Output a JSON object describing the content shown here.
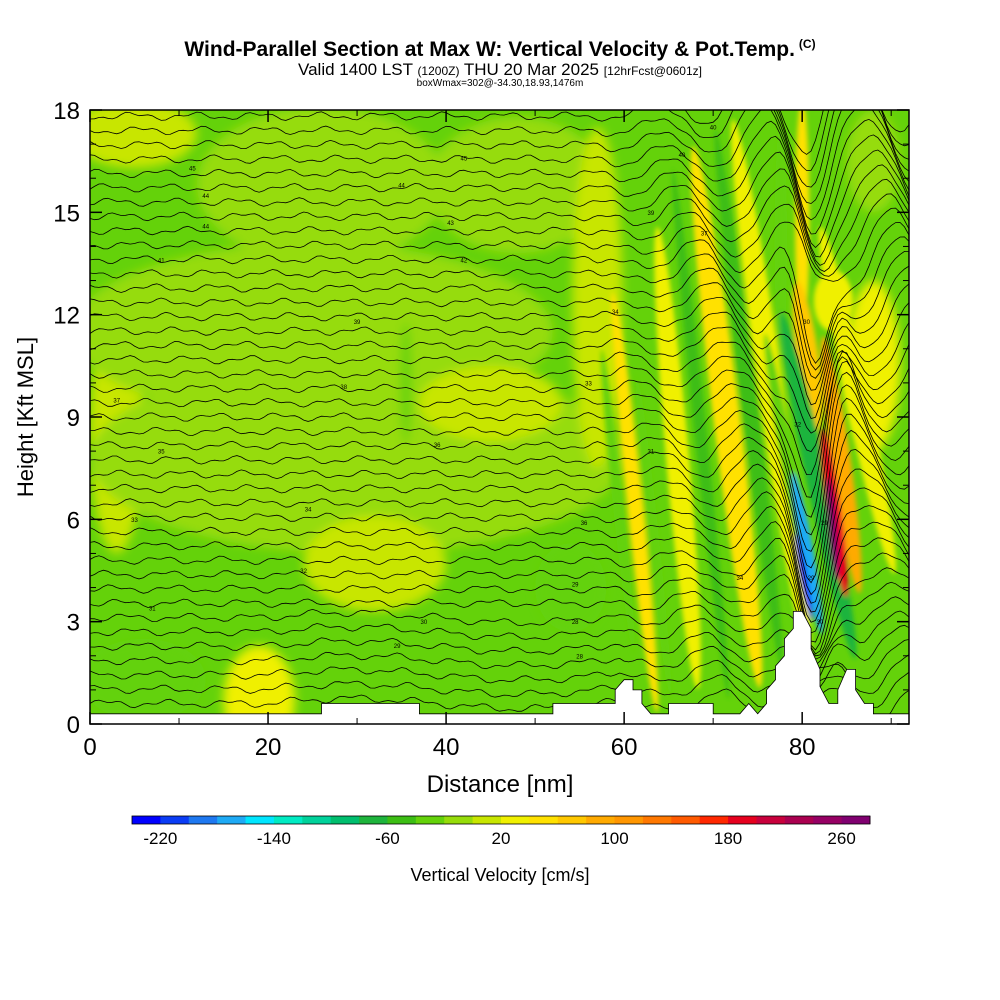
{
  "titles": {
    "main": "Wind-Parallel Section at Max W: Vertical Velocity & Pot.Temp.",
    "copyright": "(C)",
    "valid_prefix": "Valid 1400 LST",
    "valid_utc": "(1200Z)",
    "valid_date": "THU 20 Mar 2025",
    "forecast": "[12hrFcst@0601z]",
    "box": "boxWmax=302@-34.30,18.93,1476m"
  },
  "chart_data": {
    "type": "heatmap",
    "xlabel": "Distance [nm]",
    "ylabel": "Height [Kft MSL]",
    "xlim": [
      0,
      92
    ],
    "ylim": [
      0,
      18
    ],
    "x_ticks": [
      "0",
      "20",
      "40",
      "60",
      "80"
    ],
    "y_ticks": [
      "0",
      "3",
      "6",
      "9",
      "12",
      "15",
      "18"
    ],
    "colorbar": {
      "label": "Vertical Velocity [cm/s]",
      "tick_labels": [
        "-220",
        "-140",
        "-60",
        "20",
        "100",
        "180",
        "260"
      ],
      "levels": [
        -240,
        -220,
        -200,
        -180,
        -160,
        -140,
        -120,
        -100,
        -80,
        -60,
        -40,
        -20,
        0,
        20,
        40,
        60,
        80,
        100,
        120,
        140,
        160,
        180,
        200,
        220,
        240,
        260,
        280
      ],
      "colors": [
        "#0000ff",
        "#0a3cf5",
        "#1e78f0",
        "#1eaaf5",
        "#00e6ff",
        "#00ebc3",
        "#00d29b",
        "#00be6e",
        "#1eb43c",
        "#3cbe14",
        "#64d20a",
        "#96dc0a",
        "#c8e600",
        "#f0f000",
        "#ffe100",
        "#ffc800",
        "#ffaa00",
        "#ff9600",
        "#ff7800",
        "#ff5a00",
        "#ff2800",
        "#e6001e",
        "#c8003c",
        "#aa0050",
        "#960064",
        "#800070"
      ]
    },
    "terrain": [
      [
        0,
        0.3
      ],
      [
        26,
        0.3
      ],
      [
        26,
        0.6
      ],
      [
        37,
        0.6
      ],
      [
        37,
        0.3
      ],
      [
        47,
        0.3
      ],
      [
        52,
        0.3
      ],
      [
        52,
        0.6
      ],
      [
        59,
        0.6
      ],
      [
        59,
        1.0
      ],
      [
        60,
        1.3
      ],
      [
        61,
        1.3
      ],
      [
        61,
        1.0
      ],
      [
        62,
        1.0
      ],
      [
        62,
        0.6
      ],
      [
        63,
        0.3
      ],
      [
        65,
        0.3
      ],
      [
        65,
        0.6
      ],
      [
        70,
        0.6
      ],
      [
        70,
        0.3
      ],
      [
        73,
        0.3
      ],
      [
        74,
        0.6
      ],
      [
        75,
        0.3
      ],
      [
        76,
        0.6
      ],
      [
        76,
        1.0
      ],
      [
        77,
        1.3
      ],
      [
        77,
        1.7
      ],
      [
        78,
        2.0
      ],
      [
        78,
        2.5
      ],
      [
        79,
        2.8
      ],
      [
        79,
        3.3
      ],
      [
        80,
        3.3
      ],
      [
        81,
        2.8
      ],
      [
        81,
        2.2
      ],
      [
        82,
        1.6
      ],
      [
        82,
        1.1
      ],
      [
        83,
        0.6
      ],
      [
        84,
        0.6
      ],
      [
        84,
        1.0
      ],
      [
        85,
        1.6
      ],
      [
        86,
        1.6
      ],
      [
        86,
        1.0
      ],
      [
        87,
        0.6
      ],
      [
        88,
        0.6
      ],
      [
        88,
        0.3
      ],
      [
        92,
        0.3
      ]
    ],
    "isentrope_labels": [
      "45",
      "44",
      "44",
      "45",
      "44",
      "43",
      "42",
      "41",
      "39",
      "38",
      "37",
      "36",
      "35",
      "34",
      "33",
      "32",
      "31",
      "30",
      "29",
      "29",
      "28",
      "28",
      "40",
      "40",
      "39",
      "37",
      "34",
      "33",
      "31",
      "36",
      "34",
      "32",
      "30",
      "29",
      "29",
      "30"
    ]
  }
}
